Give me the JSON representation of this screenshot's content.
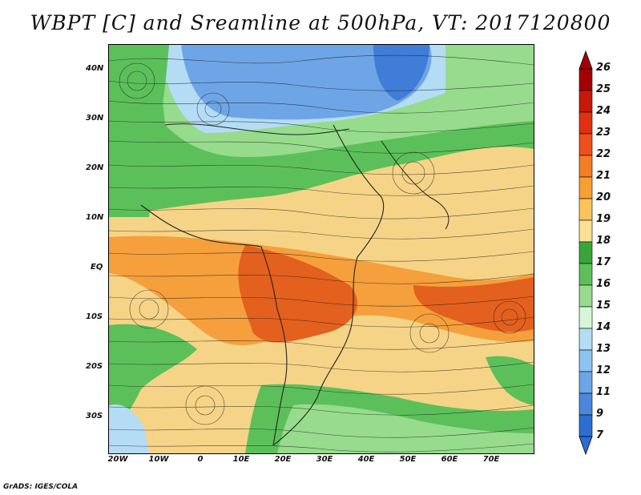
{
  "title": "WBPT [C] and Sreamline at 500hPa, VT: 2017120800",
  "credit": "GrADS: IGES/COLA",
  "axes": {
    "lat_ticks": [
      "40N",
      "30N",
      "20N",
      "10N",
      "EQ",
      "10S",
      "20S",
      "30S"
    ],
    "lon_ticks": [
      "20W",
      "10W",
      "0",
      "10E",
      "20E",
      "30E",
      "40E",
      "50E",
      "60E",
      "70E"
    ]
  },
  "colorbar": {
    "levels": [
      "26",
      "25",
      "24",
      "23",
      "22",
      "21",
      "20",
      "19",
      "18",
      "17",
      "16",
      "15",
      "14",
      "13",
      "12",
      "11",
      "9",
      "7"
    ],
    "colors": [
      "#a50000",
      "#c8180a",
      "#e0300f",
      "#f0501e",
      "#f57d23",
      "#f7a032",
      "#fac45a",
      "#fbe196",
      "#3aa53a",
      "#5cc05a",
      "#96dc8c",
      "#d8f5d8",
      "#b4dcf5",
      "#8cc3f0",
      "#6ea5e6",
      "#4b87dc",
      "#2d6ed2"
    ]
  },
  "shading": {
    "cold": "#4b87dc",
    "cool": "#b4dcf5",
    "green": "#5cc05a",
    "light_green": "#96dc8c",
    "yellow": "#fbe196",
    "tan": "#f7c871",
    "orange": "#f57d23",
    "red_orange": "#e4501e"
  }
}
